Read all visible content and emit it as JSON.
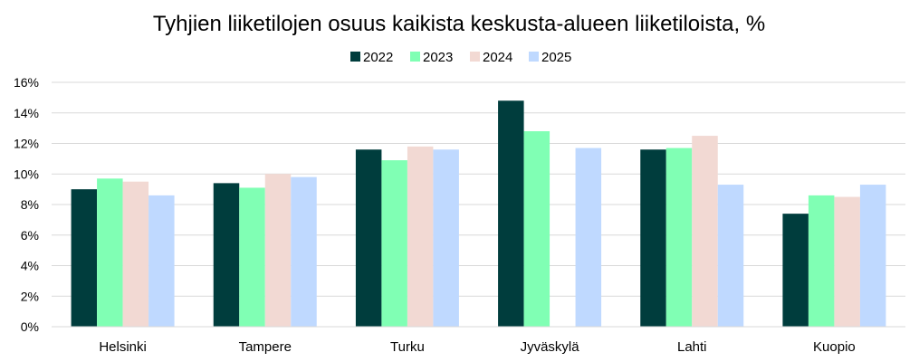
{
  "chart_data": {
    "type": "bar",
    "title": "Tyhjien liiketilojen osuus kaikista keskusta-alueen liiketiloista, %",
    "xlabel": "",
    "ylabel": "",
    "ylim": [
      0,
      16
    ],
    "y_ticks": [
      0,
      2,
      4,
      6,
      8,
      10,
      12,
      14,
      16
    ],
    "y_tick_labels": [
      "0%",
      "2%",
      "4%",
      "6%",
      "8%",
      "10%",
      "12%",
      "14%",
      "16%"
    ],
    "grid": true,
    "legend_position": "top",
    "categories": [
      "Helsinki",
      "Tampere",
      "Turku",
      "Jyväskylä",
      "Lahti",
      "Kuopio"
    ],
    "series": [
      {
        "name": "2022",
        "color": "#003d3d",
        "values": [
          9.0,
          9.4,
          11.6,
          14.8,
          11.6,
          7.4
        ]
      },
      {
        "name": "2023",
        "color": "#80ffb4",
        "values": [
          9.7,
          9.1,
          10.9,
          12.8,
          11.7,
          8.6
        ]
      },
      {
        "name": "2024",
        "color": "#f2d9d3",
        "values": [
          9.5,
          10.0,
          11.8,
          null,
          12.5,
          8.5
        ]
      },
      {
        "name": "2025",
        "color": "#bfd9ff",
        "values": [
          8.6,
          9.8,
          11.6,
          11.7,
          9.3,
          9.3
        ]
      }
    ]
  }
}
